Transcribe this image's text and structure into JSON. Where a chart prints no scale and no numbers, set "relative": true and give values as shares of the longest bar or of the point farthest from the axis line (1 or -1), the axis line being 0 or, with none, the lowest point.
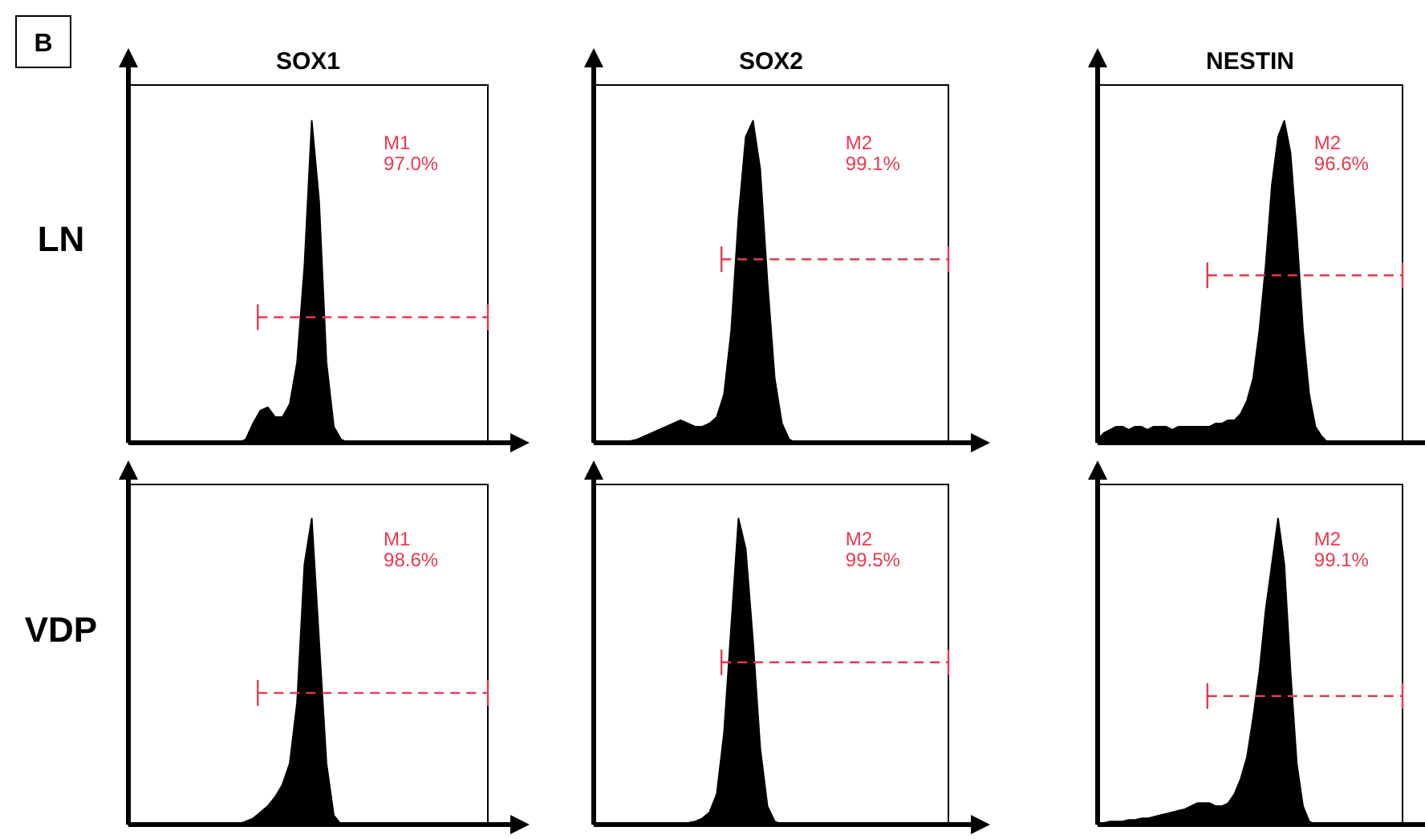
{
  "chart_data": [
    {
      "type": "area",
      "title": "SOX1",
      "ylabel": "LN",
      "relative": true,
      "ref_lines": [
        {
          "axis": "y",
          "value": 0.39,
          "color": "#e8384f",
          "line_style": "dashed"
        }
      ],
      "color": "#000000",
      "annotations": [
        "B",
        "M1",
        "97.0%"
      ],
      "categories": [
        null,
        null,
        null,
        null,
        null,
        null,
        null,
        null,
        null,
        null,
        null,
        null,
        null,
        null,
        null,
        null,
        null,
        null,
        null,
        null,
        null,
        null,
        null,
        null,
        null,
        null,
        null,
        null,
        null,
        null,
        null,
        null,
        null,
        null,
        null,
        null,
        null,
        null,
        null,
        null,
        null,
        null,
        null,
        null,
        null,
        null,
        null,
        null,
        null,
        null
      ],
      "values": [
        0,
        0,
        0,
        0,
        0,
        0,
        0,
        0,
        0,
        0,
        0,
        0,
        0,
        0,
        0,
        0,
        0.01,
        0.06,
        0.1,
        0.11,
        0.08,
        0.08,
        0.12,
        0.25,
        0.55,
        1.0,
        0.75,
        0.25,
        0.05,
        0.01,
        0,
        0,
        0,
        0,
        0,
        0,
        0,
        0,
        0,
        0,
        0,
        0,
        0,
        0,
        0,
        0,
        0,
        0,
        0,
        0
      ]
    },
    {
      "type": "area",
      "title": "SOX2",
      "relative": true,
      "ref_lines": [
        {
          "axis": "y",
          "value": 0.57,
          "color": "#e8384f",
          "line_style": "dashed"
        }
      ],
      "color": "#000000",
      "annotations": [
        "M2",
        "99.1%"
      ],
      "categories": [
        null,
        null,
        null,
        null,
        null,
        null,
        null,
        null,
        null,
        null,
        null,
        null,
        null,
        null,
        null,
        null,
        null,
        null,
        null,
        null,
        null,
        null,
        null,
        null,
        null,
        null,
        null,
        null,
        null,
        null,
        null,
        null,
        null,
        null,
        null,
        null,
        null,
        null,
        null,
        null,
        null,
        null,
        null,
        null,
        null,
        null,
        null,
        null,
        null,
        null
      ],
      "values": [
        0,
        0,
        0,
        0,
        0,
        0.005,
        0.01,
        0.02,
        0.03,
        0.04,
        0.05,
        0.06,
        0.07,
        0.06,
        0.05,
        0.05,
        0.06,
        0.08,
        0.15,
        0.35,
        0.7,
        0.95,
        1.0,
        0.85,
        0.5,
        0.2,
        0.06,
        0.01,
        0,
        0,
        0,
        0,
        0,
        0,
        0,
        0,
        0,
        0,
        0,
        0,
        0,
        0,
        0,
        0,
        0,
        0,
        0,
        0,
        0,
        0
      ]
    },
    {
      "type": "area",
      "title": "NESTIN",
      "relative": true,
      "ref_lines": [
        {
          "axis": "y",
          "value": 0.52,
          "color": "#e8384f",
          "line_style": "dashed"
        }
      ],
      "color": "#000000",
      "annotations": [
        "M2",
        "96.6%"
      ],
      "categories": [
        null,
        null,
        null,
        null,
        null,
        null,
        null,
        null,
        null,
        null,
        null,
        null,
        null,
        null,
        null,
        null,
        null,
        null,
        null,
        null,
        null,
        null,
        null,
        null,
        null,
        null,
        null,
        null,
        null,
        null,
        null,
        null,
        null,
        null,
        null,
        null,
        null,
        null,
        null,
        null,
        null,
        null,
        null,
        null,
        null,
        null,
        null,
        null,
        null,
        null
      ],
      "values": [
        0.01,
        0.03,
        0.04,
        0.05,
        0.05,
        0.04,
        0.05,
        0.05,
        0.04,
        0.05,
        0.05,
        0.05,
        0.04,
        0.05,
        0.05,
        0.05,
        0.05,
        0.05,
        0.05,
        0.06,
        0.06,
        0.07,
        0.07,
        0.09,
        0.13,
        0.2,
        0.35,
        0.55,
        0.8,
        0.95,
        1.0,
        0.9,
        0.65,
        0.35,
        0.15,
        0.05,
        0.02,
        0,
        0,
        0,
        0,
        0,
        0,
        0,
        0,
        0,
        0,
        0,
        0,
        0
      ]
    },
    {
      "type": "area",
      "ylabel": "VDP",
      "relative": true,
      "ref_lines": [
        {
          "axis": "y",
          "value": 0.43,
          "color": "#e8384f",
          "line_style": "dashed"
        }
      ],
      "color": "#000000",
      "annotations": [
        "M1",
        "98.6%"
      ],
      "categories": [
        null,
        null,
        null,
        null,
        null,
        null,
        null,
        null,
        null,
        null,
        null,
        null,
        null,
        null,
        null,
        null,
        null,
        null,
        null,
        null,
        null,
        null,
        null,
        null,
        null,
        null,
        null,
        null,
        null,
        null,
        null,
        null,
        null,
        null,
        null,
        null,
        null,
        null,
        null,
        null,
        null,
        null,
        null,
        null,
        null,
        null,
        null,
        null,
        null,
        null
      ],
      "values": [
        0,
        0,
        0,
        0,
        0,
        0,
        0,
        0,
        0,
        0,
        0,
        0,
        0,
        0,
        0,
        0,
        0.01,
        0.02,
        0.04,
        0.06,
        0.09,
        0.13,
        0.2,
        0.4,
        0.85,
        1.0,
        0.6,
        0.2,
        0.03,
        0,
        0,
        0,
        0,
        0,
        0,
        0,
        0,
        0,
        0,
        0,
        0,
        0,
        0,
        0,
        0,
        0,
        0,
        0,
        0,
        0
      ]
    },
    {
      "type": "area",
      "relative": true,
      "color": "#000000",
      "ref_lines": [
        {
          "axis": "y",
          "value": 0.53,
          "color": "#e8384f",
          "line_style": "dashed"
        }
      ],
      "annotations": [
        "M2",
        "99.5%"
      ],
      "categories": [
        null,
        null,
        null,
        null,
        null,
        null,
        null,
        null,
        null,
        null,
        null,
        null,
        null,
        null,
        null,
        null,
        null,
        null,
        null,
        null,
        null,
        null,
        null,
        null,
        null,
        null,
        null,
        null,
        null,
        null,
        null,
        null,
        null,
        null,
        null,
        null,
        null,
        null,
        null,
        null,
        null,
        null,
        null,
        null,
        null,
        null,
        null,
        null,
        null,
        null
      ],
      "values": [
        0,
        0,
        0,
        0,
        0,
        0,
        0,
        0,
        0,
        0,
        0,
        0,
        0,
        0.005,
        0.01,
        0.02,
        0.04,
        0.1,
        0.3,
        0.65,
        1.0,
        0.9,
        0.6,
        0.25,
        0.06,
        0.01,
        0,
        0,
        0,
        0,
        0,
        0,
        0,
        0,
        0,
        0,
        0,
        0,
        0,
        0,
        0,
        0,
        0,
        0,
        0,
        0,
        0,
        0,
        0,
        0
      ]
    },
    {
      "type": "area",
      "relative": true,
      "color": "#000000",
      "ref_lines": [
        {
          "axis": "y",
          "value": 0.42,
          "color": "#e8384f",
          "line_style": "dashed"
        }
      ],
      "annotations": [
        "M2",
        "99.1%"
      ],
      "categories": [
        null,
        null,
        null,
        null,
        null,
        null,
        null,
        null,
        null,
        null,
        null,
        null,
        null,
        null,
        null,
        null,
        null,
        null,
        null,
        null,
        null,
        null,
        null,
        null,
        null,
        null,
        null,
        null,
        null,
        null,
        null,
        null,
        null,
        null,
        null,
        null,
        null,
        null,
        null,
        null,
        null,
        null,
        null,
        null,
        null,
        null,
        null,
        null,
        null,
        null
      ],
      "values": [
        0,
        0.005,
        0.01,
        0.01,
        0.01,
        0.015,
        0.015,
        0.02,
        0.02,
        0.025,
        0.03,
        0.035,
        0.04,
        0.045,
        0.05,
        0.06,
        0.07,
        0.07,
        0.07,
        0.06,
        0.06,
        0.07,
        0.1,
        0.15,
        0.22,
        0.35,
        0.5,
        0.7,
        0.85,
        1.0,
        0.85,
        0.5,
        0.2,
        0.06,
        0.01,
        0,
        0,
        0,
        0,
        0,
        0,
        0,
        0,
        0,
        0,
        0,
        0,
        0,
        0,
        0
      ]
    }
  ]
}
